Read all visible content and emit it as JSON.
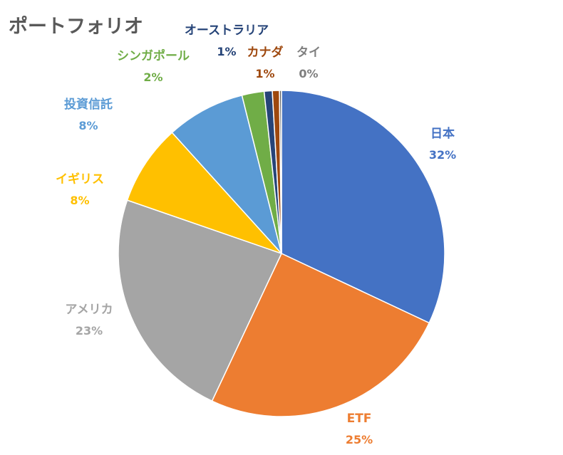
{
  "chart_data": {
    "type": "pie",
    "title": "ポートフォリオ",
    "slices": [
      {
        "name": "日本",
        "value": 32.0,
        "label": "32%",
        "color": "#4472C4"
      },
      {
        "name": "ETF",
        "value": 25.0,
        "label": "25%",
        "color": "#ED7D31"
      },
      {
        "name": "アメリカ",
        "value": 23.3,
        "label": "23%",
        "color": "#A5A5A5"
      },
      {
        "name": "イギリス",
        "value": 8.0,
        "label": "8%",
        "color": "#FFC000"
      },
      {
        "name": "投資信託",
        "value": 7.8,
        "label": "8%",
        "color": "#5B9BD5"
      },
      {
        "name": "シンガポール",
        "value": 2.2,
        "label": "2%",
        "color": "#70AD47"
      },
      {
        "name": "オーストラリア",
        "value": 0.8,
        "label": "1%",
        "color": "#264478"
      },
      {
        "name": "カナダ",
        "value": 0.7,
        "label": "1%",
        "color": "#9E480E"
      },
      {
        "name": "タイ",
        "value": 0.2,
        "label": "0%",
        "color": "#636363"
      }
    ],
    "legend": "none"
  }
}
